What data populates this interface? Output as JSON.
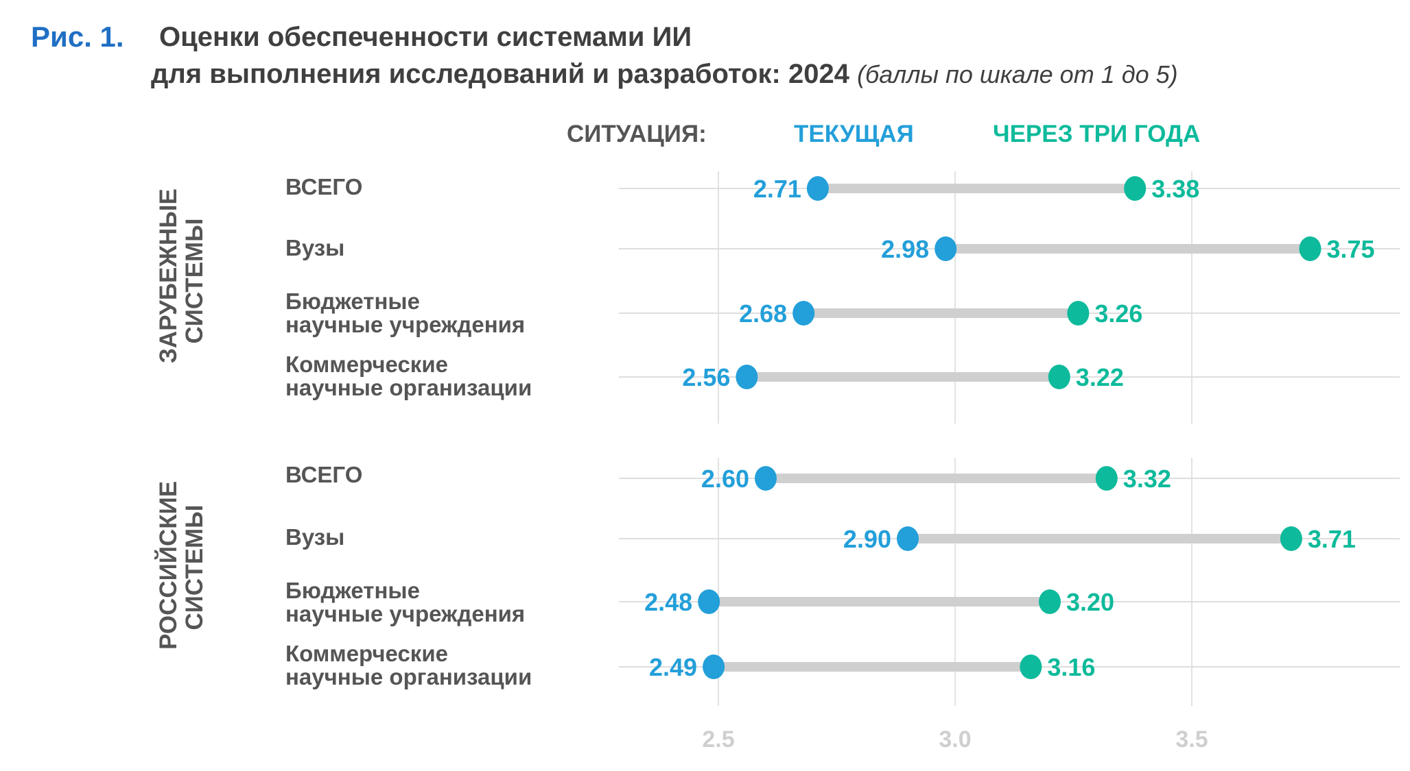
{
  "figure": {
    "number": "Рис. 1.",
    "title_line1": "Оценки обеспеченности системами ИИ",
    "title_line2": "для выполнения исследований и разработок: 2024",
    "subtitle": "(баллы по шкале от 1 до 5)"
  },
  "legend": {
    "prefix": "СИТУАЦИЯ:",
    "current": "ТЕКУЩАЯ",
    "future": "ЧЕРЕЗ ТРИ ГОДА"
  },
  "colors": {
    "current": "#239fd9",
    "future": "#0dba9b",
    "connector": "#cfcfcf",
    "title_accent": "#1f6fc4"
  },
  "chart_data": {
    "type": "dumbbell",
    "title": "Оценки обеспеченности системами ИИ для выполнения исследований и разработок: 2024",
    "subtitle": "(баллы по шкале от 1 до 5)",
    "xlabel": "",
    "ylabel": "",
    "xlim": [
      2.35,
      3.9
    ],
    "xticks": [
      2.5,
      3.0,
      3.5
    ],
    "xtick_labels": [
      "2.5",
      "3.0",
      "3.5"
    ],
    "grid": true,
    "legend_position": "top",
    "series": [
      {
        "name": "ТЕКУЩАЯ",
        "key": "current"
      },
      {
        "name": "ЧЕРЕЗ ТРИ ГОДА",
        "key": "future"
      }
    ],
    "groups": [
      {
        "label_line1": "ЗАРУБЕЖНЫЕ",
        "label_line2": "СИСТЕМЫ",
        "rows": [
          {
            "label_line1": "ВСЕГО",
            "label_line2": "",
            "current": 2.71,
            "future": 3.38,
            "current_label": "2.71",
            "future_label": "3.38"
          },
          {
            "label_line1": "Вузы",
            "label_line2": "",
            "current": 2.98,
            "future": 3.75,
            "current_label": "2.98",
            "future_label": "3.75"
          },
          {
            "label_line1": "Бюджетные",
            "label_line2": "научные учреждения",
            "current": 2.68,
            "future": 3.26,
            "current_label": "2.68",
            "future_label": "3.26"
          },
          {
            "label_line1": "Коммерческие",
            "label_line2": "научные организации",
            "current": 2.56,
            "future": 3.22,
            "current_label": "2.56",
            "future_label": "3.22"
          }
        ]
      },
      {
        "label_line1": "РОССИЙСКИЕ",
        "label_line2": "СИСТЕМЫ",
        "rows": [
          {
            "label_line1": "ВСЕГО",
            "label_line2": "",
            "current": 2.6,
            "future": 3.32,
            "current_label": "2.60",
            "future_label": "3.32"
          },
          {
            "label_line1": "Вузы",
            "label_line2": "",
            "current": 2.9,
            "future": 3.71,
            "current_label": "2.90",
            "future_label": "3.71"
          },
          {
            "label_line1": "Бюджетные",
            "label_line2": "научные учреждения",
            "current": 2.48,
            "future": 3.2,
            "current_label": "2.48",
            "future_label": "3.20"
          },
          {
            "label_line1": "Коммерческие",
            "label_line2": "научные организации",
            "current": 2.49,
            "future": 3.16,
            "current_label": "2.49",
            "future_label": "3.16"
          }
        ]
      }
    ]
  }
}
